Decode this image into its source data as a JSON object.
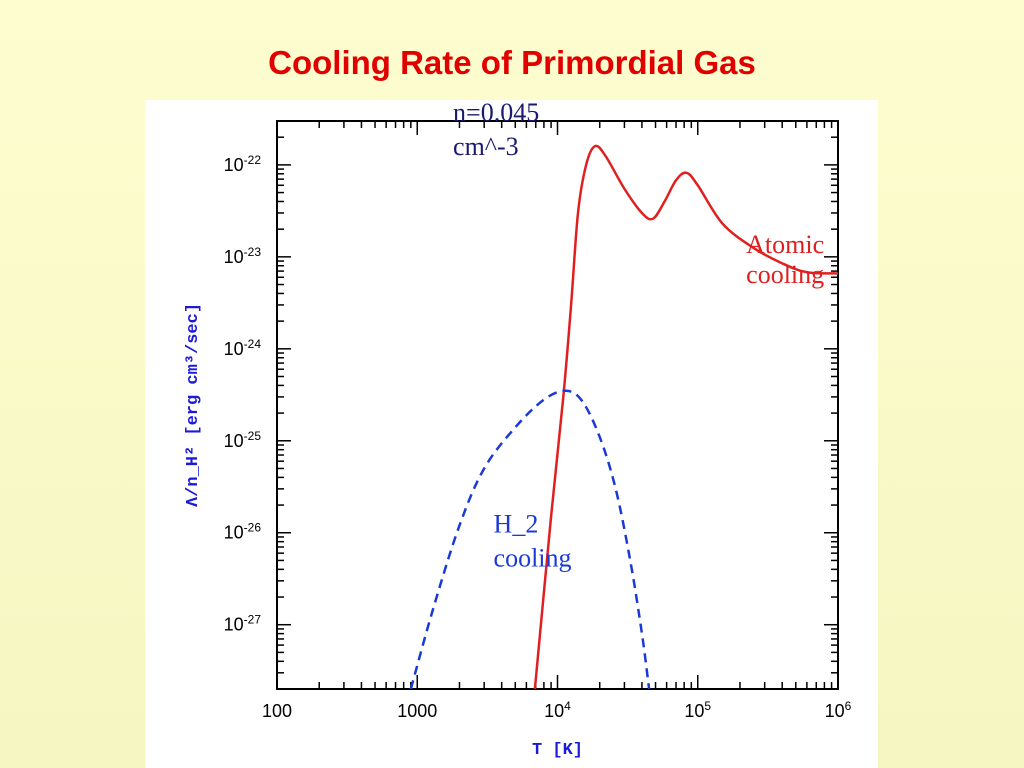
{
  "slide": {
    "title": "Cooling Rate of Primordial Gas"
  },
  "chart_data": {
    "type": "line",
    "title": "Cooling Rate of Primordial Gas",
    "xlabel": "T [K]",
    "ylabel": "Λ/n_H² [erg cm³/sec]",
    "xscale": "log",
    "yscale": "log",
    "xlim": [
      100,
      1000000
    ],
    "ylim": [
      2e-28,
      3e-22
    ],
    "x_ticks": [
      {
        "value": 100,
        "base": "100",
        "exp": ""
      },
      {
        "value": 1000,
        "base": "1000",
        "exp": ""
      },
      {
        "value": 10000,
        "base": "10",
        "exp": "4"
      },
      {
        "value": 100000,
        "base": "10",
        "exp": "5"
      },
      {
        "value": 1000000,
        "base": "10",
        "exp": "6"
      }
    ],
    "y_ticks": [
      {
        "value": 1e-22,
        "base": "10",
        "exp": "-22"
      },
      {
        "value": 1e-23,
        "base": "10",
        "exp": "-23"
      },
      {
        "value": 1e-24,
        "base": "10",
        "exp": "-24"
      },
      {
        "value": 1e-25,
        "base": "10",
        "exp": "-25"
      },
      {
        "value": 1e-26,
        "base": "10",
        "exp": "-26"
      },
      {
        "value": 1e-27,
        "base": "10",
        "exp": "-27"
      }
    ],
    "series": [
      {
        "name": "Atomic cooling",
        "color": "#e02020",
        "style": "solid",
        "points": [
          [
            6900,
            2e-28
          ],
          [
            9000,
            1.5e-26
          ],
          [
            11000,
            3e-25
          ],
          [
            12500,
            3e-24
          ],
          [
            14000,
            3e-23
          ],
          [
            16000,
            1e-22
          ],
          [
            18500,
            1.6e-22
          ],
          [
            22000,
            1.25e-22
          ],
          [
            30000,
            5.5e-23
          ],
          [
            40000,
            3e-23
          ],
          [
            48000,
            2.6e-23
          ],
          [
            58000,
            4e-23
          ],
          [
            70000,
            6.8e-23
          ],
          [
            83000,
            8.2e-23
          ],
          [
            100000,
            6e-23
          ],
          [
            150000,
            2.3e-23
          ],
          [
            250000,
            1.25e-23
          ],
          [
            400000,
            8.5e-24
          ],
          [
            600000,
            6.8e-24
          ],
          [
            1000000,
            6.6e-24
          ]
        ]
      },
      {
        "name": "H_2 cooling",
        "color": "#1a3ad8",
        "style": "dashed",
        "points": [
          [
            900,
            2e-28
          ],
          [
            1300,
            1.5e-27
          ],
          [
            2000,
            1.2e-26
          ],
          [
            3000,
            5e-26
          ],
          [
            5000,
            1.4e-25
          ],
          [
            8000,
            2.8e-25
          ],
          [
            11500,
            3.5e-25
          ],
          [
            15000,
            2.7e-25
          ],
          [
            20000,
            1.1e-25
          ],
          [
            26000,
            3e-26
          ],
          [
            33000,
            5e-27
          ],
          [
            40000,
            8e-28
          ],
          [
            45000,
            2e-28
          ]
        ]
      }
    ],
    "annotations": [
      {
        "lines": [
          "n=0.045",
          "cm^-3"
        ],
        "color": "#1a1a6e",
        "x": 1800,
        "y": 3e-22
      },
      {
        "lines": [
          "Atomic",
          "cooling"
        ],
        "color": "#e02020",
        "x": 420000,
        "y": 1.1e-23
      },
      {
        "lines": [
          "H_2",
          "cooling"
        ],
        "color": "#1a3ad8",
        "x": 3500,
        "y": 1e-26
      }
    ]
  }
}
